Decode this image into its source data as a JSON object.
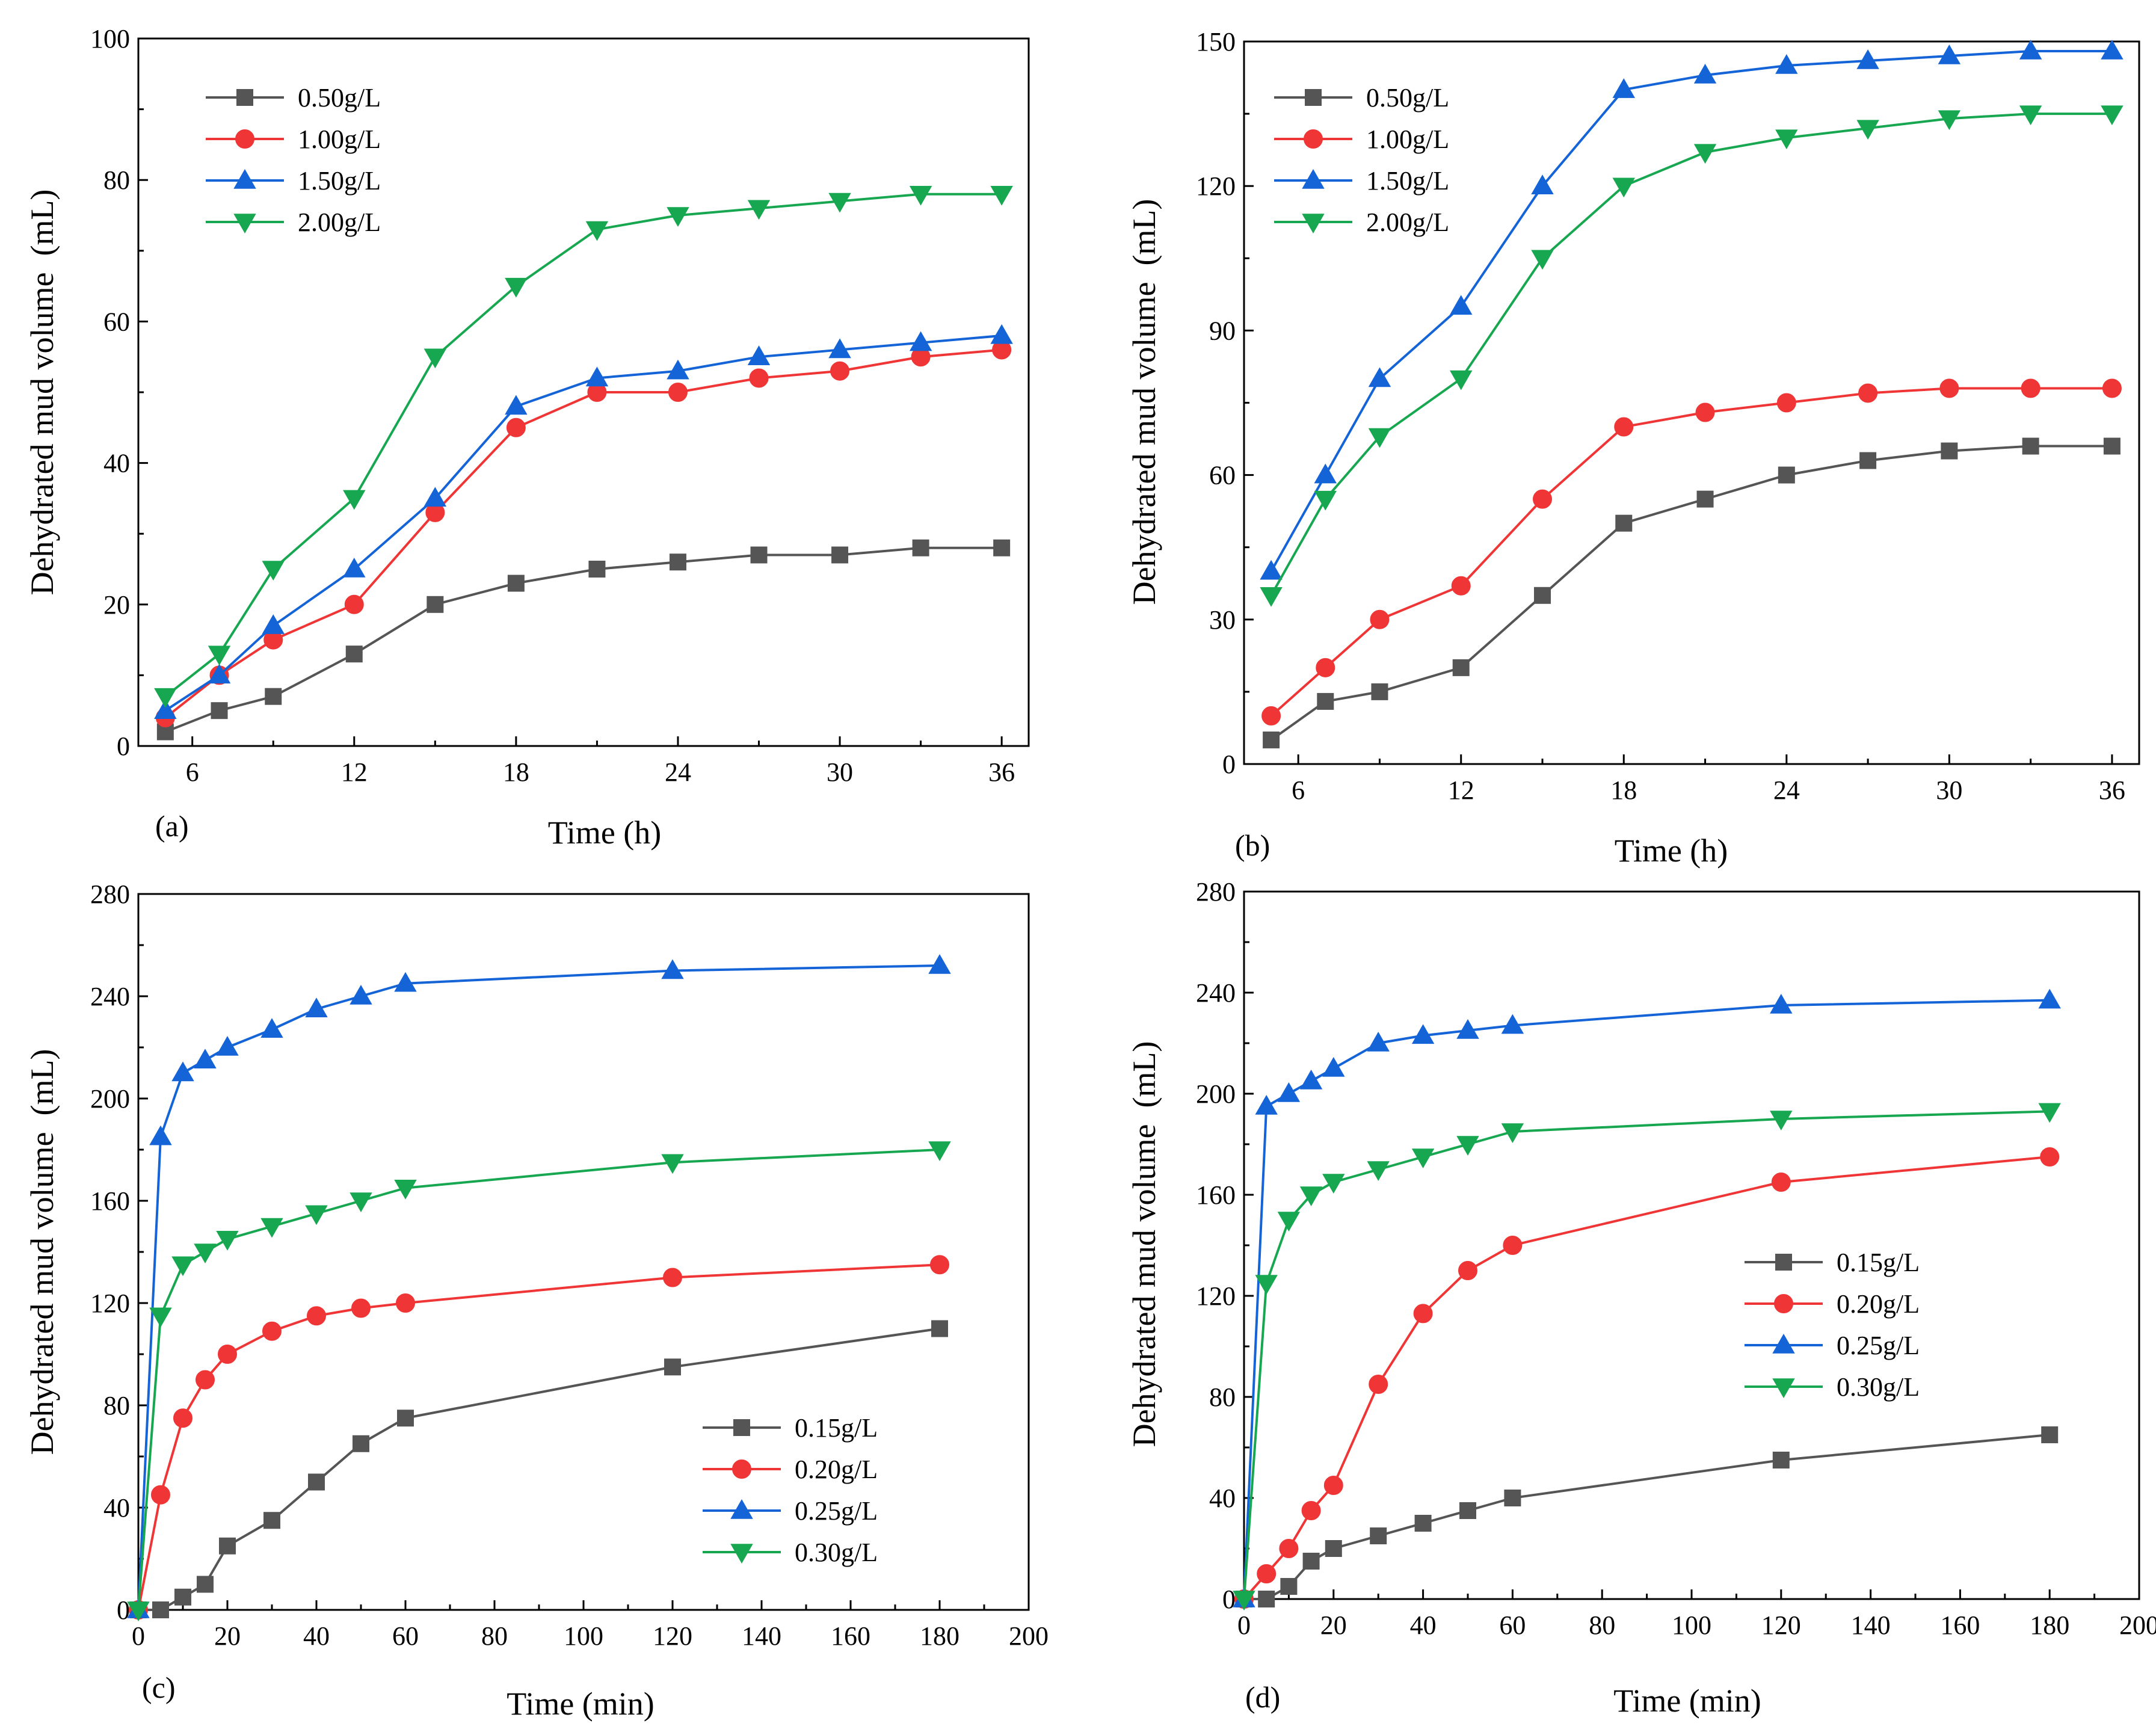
{
  "colors": {
    "black": "#555555",
    "red": "#ef3535",
    "blue": "#1464d7",
    "green": "#17a750"
  },
  "chart_data": [
    {
      "type": "line",
      "panel_label": "(a)",
      "xlabel": "Time (h)",
      "ylabel": "Dehydrated mud volume  (mL)",
      "xlim": [
        4,
        37
      ],
      "ylim": [
        0,
        100
      ],
      "xticks": [
        6,
        12,
        18,
        24,
        30,
        36
      ],
      "yticks": [
        0,
        20,
        40,
        60,
        80,
        100
      ],
      "legend_position": "top-left",
      "x": [
        5,
        7,
        9,
        12,
        15,
        18,
        21,
        24,
        27,
        30,
        33,
        36
      ],
      "series": [
        {
          "name": "0.50g/L",
          "color": "#555555",
          "marker": "square",
          "values": [
            2,
            5,
            7,
            13,
            20,
            23,
            25,
            26,
            27,
            27,
            28,
            28
          ]
        },
        {
          "name": "1.00g/L",
          "color": "#ef3535",
          "marker": "circle",
          "values": [
            4,
            10,
            15,
            20,
            33,
            45,
            50,
            50,
            52,
            53,
            55,
            56
          ]
        },
        {
          "name": "1.50g/L",
          "color": "#1464d7",
          "marker": "triangle-up",
          "values": [
            5,
            10,
            17,
            25,
            35,
            48,
            52,
            53,
            55,
            56,
            57,
            58
          ]
        },
        {
          "name": "2.00g/L",
          "color": "#17a750",
          "marker": "triangle-down",
          "values": [
            7,
            13,
            25,
            35,
            55,
            65,
            73,
            75,
            76,
            77,
            78,
            78
          ]
        }
      ]
    },
    {
      "type": "line",
      "panel_label": "(b)",
      "xlabel": "Time (h)",
      "ylabel": "Dehydrated mud volume  (mL)",
      "xlim": [
        4,
        37
      ],
      "ylim": [
        0,
        150
      ],
      "xticks": [
        6,
        12,
        18,
        24,
        30,
        36
      ],
      "yticks": [
        0,
        30,
        60,
        90,
        120,
        150
      ],
      "legend_position": "top-left",
      "x": [
        5,
        7,
        9,
        12,
        15,
        18,
        21,
        24,
        27,
        30,
        33,
        36
      ],
      "series": [
        {
          "name": "0.50g/L",
          "color": "#555555",
          "marker": "square",
          "values": [
            5,
            13,
            15,
            20,
            35,
            50,
            55,
            60,
            63,
            65,
            66,
            66
          ]
        },
        {
          "name": "1.00g/L",
          "color": "#ef3535",
          "marker": "circle",
          "values": [
            10,
            20,
            30,
            37,
            55,
            70,
            73,
            75,
            77,
            78,
            78,
            78
          ]
        },
        {
          "name": "1.50g/L",
          "color": "#1464d7",
          "marker": "triangle-up",
          "values": [
            40,
            60,
            80,
            95,
            120,
            140,
            143,
            145,
            146,
            147,
            148,
            148
          ]
        },
        {
          "name": "2.00g/L",
          "color": "#17a750",
          "marker": "triangle-down",
          "values": [
            35,
            55,
            68,
            80,
            105,
            120,
            127,
            130,
            132,
            134,
            135,
            135
          ]
        }
      ]
    },
    {
      "type": "line",
      "panel_label": "(c)",
      "xlabel": "Time (min)",
      "ylabel": "Dehydrated mud volume  (mL)",
      "xlim": [
        0,
        200
      ],
      "ylim": [
        0,
        280
      ],
      "xticks": [
        0,
        20,
        40,
        60,
        80,
        100,
        120,
        140,
        160,
        180,
        200
      ],
      "yticks": [
        0,
        40,
        80,
        120,
        160,
        200,
        240,
        280
      ],
      "legend_position": "bottom-right",
      "x": [
        0,
        5,
        10,
        15,
        20,
        30,
        40,
        50,
        60,
        120,
        180
      ],
      "series": [
        {
          "name": "0.15g/L",
          "color": "#555555",
          "marker": "square",
          "values": [
            0,
            0,
            5,
            10,
            25,
            35,
            50,
            65,
            75,
            95,
            110
          ]
        },
        {
          "name": "0.20g/L",
          "color": "#ef3535",
          "marker": "circle",
          "values": [
            0,
            45,
            75,
            90,
            100,
            109,
            115,
            118,
            120,
            130,
            135
          ]
        },
        {
          "name": "0.25g/L",
          "color": "#1464d7",
          "marker": "triangle-up",
          "values": [
            0,
            185,
            210,
            215,
            220,
            227,
            235,
            240,
            245,
            250,
            252
          ]
        },
        {
          "name": "0.30g/L",
          "color": "#17a750",
          "marker": "triangle-down",
          "values": [
            0,
            115,
            135,
            140,
            145,
            150,
            155,
            160,
            165,
            175,
            180
          ]
        }
      ]
    },
    {
      "type": "line",
      "panel_label": "(d)",
      "xlabel": "Time (min)",
      "ylabel": "Dehydrated mud volume  (mL)",
      "xlim": [
        0,
        200
      ],
      "ylim": [
        0,
        280
      ],
      "xticks": [
        0,
        20,
        40,
        60,
        80,
        100,
        120,
        140,
        160,
        180,
        200
      ],
      "yticks": [
        0,
        40,
        80,
        120,
        160,
        200,
        240,
        280
      ],
      "legend_position": "center-right",
      "x": [
        0,
        5,
        10,
        15,
        20,
        30,
        40,
        50,
        60,
        120,
        180
      ],
      "series": [
        {
          "name": "0.15g/L",
          "color": "#555555",
          "marker": "square",
          "values": [
            0,
            0,
            5,
            15,
            20,
            25,
            30,
            35,
            40,
            55,
            65
          ]
        },
        {
          "name": "0.20g/L",
          "color": "#ef3535",
          "marker": "circle",
          "values": [
            0,
            10,
            20,
            35,
            45,
            85,
            113,
            130,
            140,
            165,
            175
          ]
        },
        {
          "name": "0.25g/L",
          "color": "#1464d7",
          "marker": "triangle-up",
          "values": [
            0,
            195,
            200,
            205,
            210,
            220,
            223,
            225,
            227,
            235,
            237
          ]
        },
        {
          "name": "0.30g/L",
          "color": "#17a750",
          "marker": "triangle-down",
          "values": [
            0,
            125,
            150,
            160,
            165,
            170,
            175,
            180,
            185,
            190,
            193
          ]
        }
      ]
    }
  ]
}
